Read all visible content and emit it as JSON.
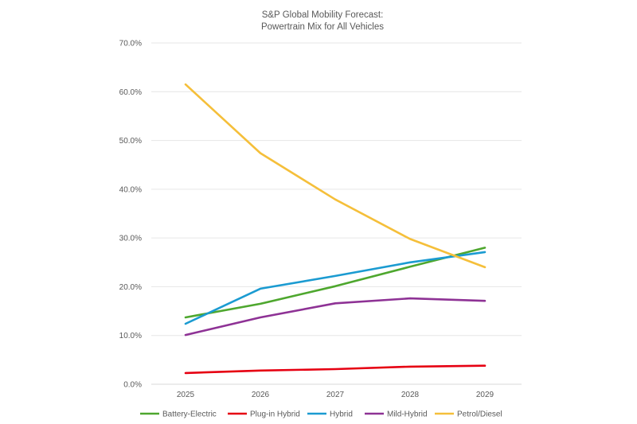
{
  "chart_data": {
    "type": "line",
    "title": "S&P Global Mobility Forecast:",
    "subtitle": "Powertrain Mix for All Vehicles",
    "xlabel": "",
    "ylabel": "",
    "categories": [
      "2025",
      "2026",
      "2027",
      "2028",
      "2029"
    ],
    "ylim": [
      0,
      70
    ],
    "y_ticks": [
      "0.0%",
      "10.0%",
      "20.0%",
      "30.0%",
      "40.0%",
      "50.0%",
      "60.0%",
      "70.0%"
    ],
    "grid": true,
    "legend_position": "bottom",
    "series": [
      {
        "name": "Battery-Electric",
        "color": "#4ea72e",
        "values": [
          13.7,
          16.5,
          20.1,
          24.1,
          28.0
        ]
      },
      {
        "name": "Plug-in Hybrid",
        "color": "#e60012",
        "values": [
          2.3,
          2.8,
          3.1,
          3.6,
          3.8
        ]
      },
      {
        "name": "Hybrid",
        "color": "#1b9bd1",
        "values": [
          12.4,
          19.6,
          22.2,
          25.0,
          27.1
        ]
      },
      {
        "name": "Mild-Hybrid",
        "color": "#8e3295",
        "values": [
          10.1,
          13.7,
          16.6,
          17.6,
          17.1
        ]
      },
      {
        "name": "Petrol/Diesel",
        "color": "#f5bf3a",
        "values": [
          61.5,
          47.4,
          37.9,
          29.8,
          24.0
        ]
      }
    ]
  }
}
